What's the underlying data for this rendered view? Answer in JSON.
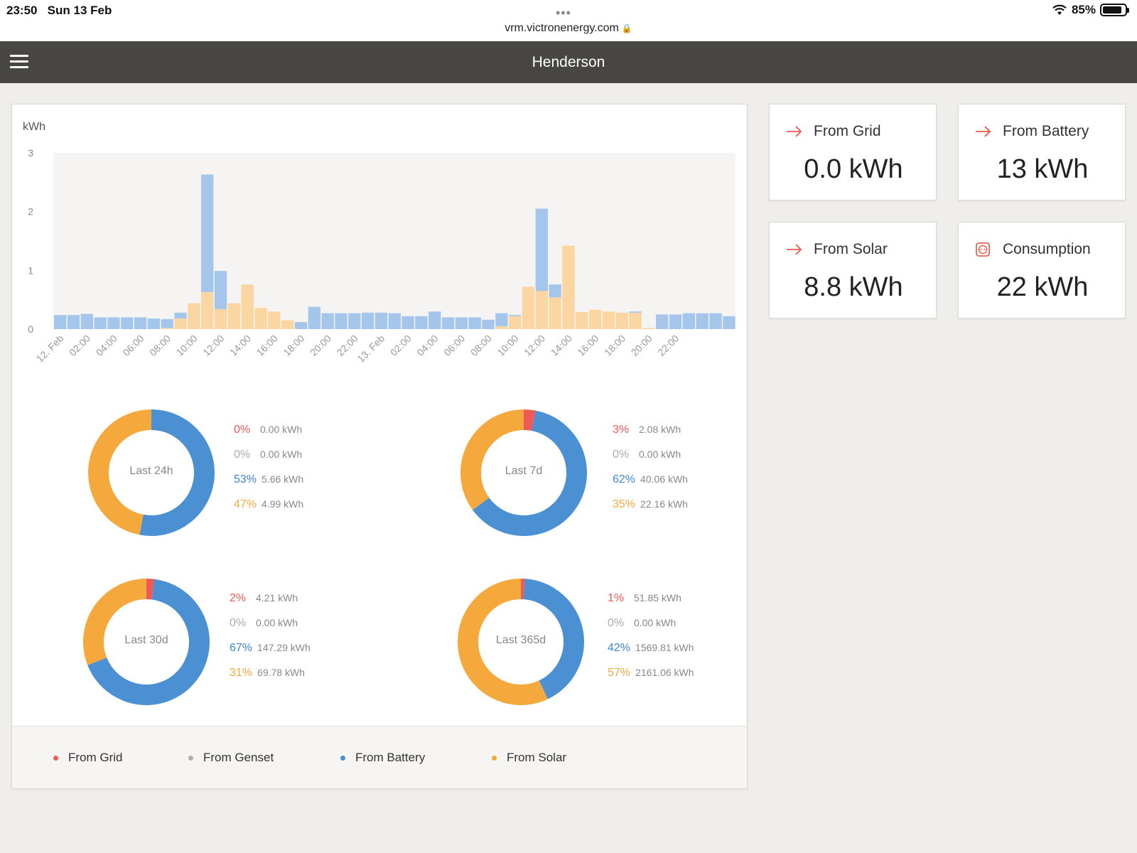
{
  "statusbar": {
    "time": "23:50",
    "date": "Sun 13 Feb",
    "url": "vrm.victronenergy.com",
    "battery": "85%",
    "battery_level": 0.85
  },
  "header": {
    "title": "Henderson"
  },
  "colors": {
    "grid": "#ef5a57",
    "genset": "#b0b0b0",
    "battery": "#4a90d2",
    "battery_light": "#a3c6ea",
    "solar": "#f5a93c",
    "solar_light": "#fbd6a1",
    "accent": "#e9594a"
  },
  "chart_data": {
    "type": "bar",
    "ylabel": "kWh",
    "ylim": [
      0,
      3
    ],
    "yticks": [
      "0",
      "1",
      "2",
      "3"
    ],
    "xtick_labels": [
      "12. Feb",
      "02:00",
      "04:00",
      "06:00",
      "08:00",
      "10:00",
      "12:00",
      "14:00",
      "16:00",
      "18:00",
      "20:00",
      "22:00",
      "13. Feb",
      "02:00",
      "04:00",
      "06:00",
      "08:00",
      "10:00",
      "12:00",
      "14:00",
      "16:00",
      "18:00",
      "20:00",
      "22:00"
    ],
    "series": [
      {
        "name": "From Battery",
        "values": [
          0.24,
          0.24,
          0.26,
          0.2,
          0.2,
          0.2,
          0.2,
          0.18,
          0.15,
          0.1,
          0,
          2.0,
          0.65,
          0,
          0,
          0,
          0,
          0,
          0.12,
          0.38,
          0.27,
          0.27,
          0.27,
          0.28,
          0.28,
          0.27,
          0.22,
          0.22,
          0.3,
          0.2,
          0.2,
          0.2,
          0.16,
          0.22,
          0.02,
          0,
          1.4,
          0.22,
          0,
          0,
          0,
          0,
          0,
          0.02,
          0,
          0.25,
          0.25,
          0.27,
          0.27,
          0.27,
          0.22
        ]
      },
      {
        "name": "From Solar",
        "values": [
          0,
          0,
          0,
          0,
          0,
          0,
          0,
          0,
          0.02,
          0.18,
          0.44,
          0.63,
          0.34,
          0.44,
          0.76,
          0.36,
          0.3,
          0.15,
          0,
          0,
          0,
          0,
          0,
          0,
          0,
          0,
          0,
          0,
          0,
          0,
          0,
          0,
          0,
          0.05,
          0.22,
          0.72,
          0.65,
          0.54,
          1.42,
          0.29,
          0.33,
          0.3,
          0.28,
          0.28,
          0.02,
          0,
          0,
          0,
          0,
          0,
          0
        ]
      }
    ]
  },
  "donuts": [
    {
      "label": "Last 24h",
      "grid_pct": "0%",
      "grid_kwh": "0.00 kWh",
      "genset_pct": "0%",
      "genset_kwh": "0.00 kWh",
      "battery_pct": "53%",
      "battery_kwh": "5.66 kWh",
      "solar_pct": "47%",
      "solar_kwh": "4.99 kWh",
      "slices": [
        0,
        0,
        53,
        47
      ]
    },
    {
      "label": "Last 7d",
      "grid_pct": "3%",
      "grid_kwh": "2.08 kWh",
      "genset_pct": "0%",
      "genset_kwh": "0.00 kWh",
      "battery_pct": "62%",
      "battery_kwh": "40.06 kWh",
      "solar_pct": "35%",
      "solar_kwh": "22.16 kWh",
      "slices": [
        3,
        0,
        62,
        35
      ]
    },
    {
      "label": "Last 30d",
      "grid_pct": "2%",
      "grid_kwh": "4.21 kWh",
      "genset_pct": "0%",
      "genset_kwh": "0.00 kWh",
      "battery_pct": "67%",
      "battery_kwh": "147.29 kWh",
      "solar_pct": "31%",
      "solar_kwh": "69.78 kWh",
      "slices": [
        2,
        0,
        67,
        31
      ]
    },
    {
      "label": "Last 365d",
      "grid_pct": "1%",
      "grid_kwh": "51.85 kWh",
      "genset_pct": "0%",
      "genset_kwh": "0.00 kWh",
      "battery_pct": "42%",
      "battery_kwh": "1569.81 kWh",
      "solar_pct": "57%",
      "solar_kwh": "2161.06 kWh",
      "slices": [
        1,
        0,
        42,
        57
      ]
    }
  ],
  "legend": {
    "grid": "From Grid",
    "genset": "From Genset",
    "battery": "From Battery",
    "solar": "From Solar"
  },
  "cards": {
    "from_grid": {
      "label": "From Grid",
      "value": "0.0 kWh",
      "icon": "arrow-right-icon"
    },
    "from_battery": {
      "label": "From Battery",
      "value": "13 kWh",
      "icon": "arrow-right-icon"
    },
    "from_solar": {
      "label": "From Solar",
      "value": "8.8 kWh",
      "icon": "arrow-right-icon"
    },
    "consumption": {
      "label": "Consumption",
      "value": "22 kWh",
      "icon": "outlet-icon"
    }
  }
}
